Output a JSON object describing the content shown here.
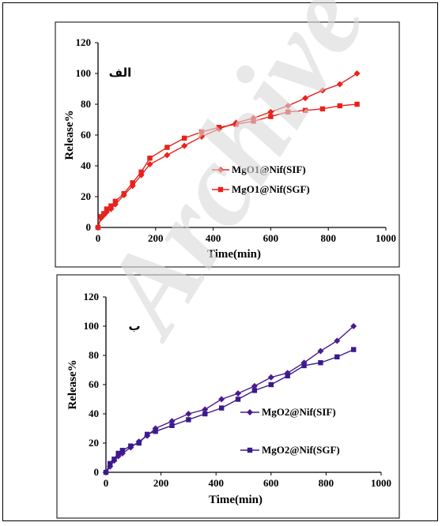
{
  "watermark": "Archive",
  "chart_data": [
    {
      "type": "line",
      "panel_label": "الف",
      "xlabel": "Time(min)",
      "ylabel": "Release%",
      "xlim": [
        0,
        1000
      ],
      "ylim": [
        0,
        120
      ],
      "xticks": [
        0,
        200,
        400,
        600,
        800,
        1000
      ],
      "yticks": [
        0,
        20,
        40,
        60,
        80,
        100,
        120
      ],
      "legend_position": "center-right",
      "series": [
        {
          "name": "MgO1@Nif(SIF)",
          "color": "#e8221c",
          "marker": "diamond",
          "x": [
            0,
            10,
            20,
            30,
            45,
            60,
            90,
            120,
            150,
            180,
            240,
            300,
            360,
            420,
            480,
            540,
            600,
            660,
            720,
            780,
            840,
            900
          ],
          "y": [
            0,
            6,
            8,
            10,
            12,
            15,
            21,
            27,
            34,
            41,
            47,
            53,
            59,
            64,
            68,
            71,
            75,
            79,
            84,
            89,
            93,
            100
          ]
        },
        {
          "name": "MgO1@Nif(SGF)",
          "color": "#e8221c",
          "marker": "square",
          "x": [
            0,
            10,
            20,
            30,
            45,
            60,
            90,
            120,
            150,
            180,
            240,
            300,
            360,
            420,
            480,
            540,
            600,
            660,
            720,
            780,
            840,
            900
          ],
          "y": [
            0,
            7,
            9,
            12,
            14,
            17,
            22,
            29,
            36,
            45,
            52,
            58,
            62,
            65,
            67,
            69,
            72,
            75,
            76,
            77,
            79,
            80
          ]
        }
      ]
    },
    {
      "type": "line",
      "panel_label": "ب",
      "xlabel": "Time(min)",
      "ylabel": "Release%",
      "xlim": [
        0,
        1000
      ],
      "ylim": [
        0,
        120
      ],
      "xticks": [
        0,
        200,
        400,
        600,
        800,
        1000
      ],
      "yticks": [
        0,
        20,
        40,
        60,
        80,
        100,
        120
      ],
      "legend_position": "center-right",
      "series": [
        {
          "name": "MgO2@Nif(SIF)",
          "color": "#4b1a8c",
          "marker": "diamond",
          "x": [
            0,
            15,
            30,
            45,
            60,
            90,
            120,
            150,
            180,
            240,
            300,
            360,
            420,
            480,
            540,
            600,
            660,
            720,
            780,
            840,
            900
          ],
          "y": [
            0,
            4,
            8,
            11,
            13,
            17,
            21,
            25,
            30,
            35,
            40,
            43,
            50,
            54,
            59,
            65,
            68,
            75,
            83,
            90,
            100
          ]
        },
        {
          "name": "MgO2@Nif(SGF)",
          "color": "#3a1a8c",
          "marker": "square",
          "x": [
            0,
            15,
            30,
            45,
            60,
            90,
            120,
            150,
            180,
            240,
            300,
            360,
            420,
            480,
            540,
            600,
            660,
            720,
            780,
            840,
            900
          ],
          "y": [
            0,
            6,
            9,
            13,
            15,
            18,
            20,
            26,
            28,
            32,
            36,
            40,
            44,
            50,
            56,
            60,
            66,
            73,
            75,
            79,
            84
          ]
        }
      ]
    }
  ]
}
